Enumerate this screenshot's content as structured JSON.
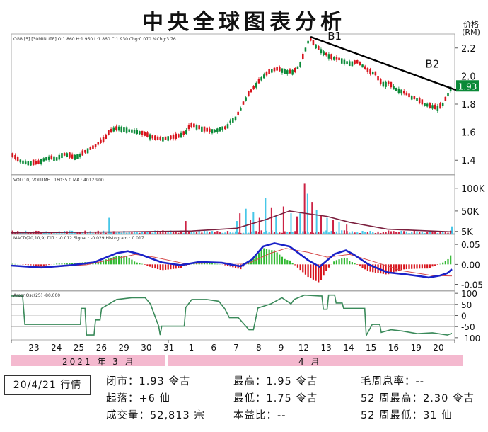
{
  "header": {
    "title": "中央全球图表分析",
    "price_unit_line1": "价格",
    "price_unit_line2": "(RM)"
  },
  "panels": {
    "price_header": "CGB [5] [30MINUTE] O:1.860 H:1.950 L:1.860 C:1.930 Chg:0.070 %Chg:3.76",
    "volume_header": "VOL(10)  VOLUME : 16035.0   MA : 4012.900",
    "macd_header": "MACD(20,10,9)   Diff : -0.012   Signal : -0.029   Histogram : 0.017",
    "aroon_header": "AroonOsc(25) -80.000"
  },
  "trendline_labels": [
    "B1",
    "B2"
  ],
  "last_price_label": "1.93",
  "month_labels": {
    "march": "2021 年 3 月",
    "april": "4 月"
  },
  "colors": {
    "up": "#0b8a38",
    "down": "#d8141c",
    "volume_up": "#47c7e8",
    "volume_down": "#cc2244",
    "volume_ma": "#7b1f3e",
    "macd": "#1a22c8",
    "signal": "#d64a4a",
    "aroon": "#3a8a5a",
    "band": "#f4b9cf",
    "last_price_bg": "#0b8a38"
  },
  "chart_data": [
    {
      "type": "candlestick",
      "title": "CGB [5] [30MINUTE] O:1.860 H:1.950 L:1.860 C:1.930 Chg:0.070 %Chg:3.76",
      "ylabel": "价格 (RM)",
      "ylim": [
        1.3,
        2.3
      ],
      "yticks": [
        1.4,
        1.6,
        1.8,
        2.0,
        2.2
      ],
      "x_tick_labels": [
        "23",
        "24",
        "25",
        "26",
        "29",
        "30",
        "31",
        "1",
        "6",
        "7",
        "8",
        "9",
        "12",
        "13",
        "14",
        "15",
        "16",
        "19",
        "20"
      ],
      "close_path": [
        [
          0,
          1.44
        ],
        [
          10,
          1.4
        ],
        [
          20,
          1.38
        ],
        [
          35,
          1.38
        ],
        [
          45,
          1.41
        ],
        [
          52,
          1.42
        ],
        [
          60,
          1.41
        ],
        [
          68,
          1.44
        ],
        [
          75,
          1.44
        ],
        [
          82,
          1.42
        ],
        [
          90,
          1.43
        ],
        [
          98,
          1.46
        ],
        [
          105,
          1.48
        ],
        [
          112,
          1.5
        ],
        [
          118,
          1.53
        ],
        [
          124,
          1.55
        ],
        [
          130,
          1.6
        ],
        [
          136,
          1.62
        ],
        [
          142,
          1.63
        ],
        [
          150,
          1.62
        ],
        [
          160,
          1.61
        ],
        [
          170,
          1.6
        ],
        [
          180,
          1.58
        ],
        [
          190,
          1.56
        ],
        [
          200,
          1.55
        ],
        [
          210,
          1.56
        ],
        [
          222,
          1.57
        ],
        [
          232,
          1.6
        ],
        [
          238,
          1.65
        ],
        [
          246,
          1.64
        ],
        [
          256,
          1.62
        ],
        [
          264,
          1.61
        ],
        [
          272,
          1.61
        ],
        [
          280,
          1.63
        ],
        [
          286,
          1.63
        ],
        [
          292,
          1.68
        ],
        [
          298,
          1.7
        ],
        [
          304,
          1.75
        ],
        [
          308,
          1.8
        ],
        [
          314,
          1.86
        ],
        [
          320,
          1.9
        ],
        [
          326,
          1.94
        ],
        [
          332,
          1.98
        ],
        [
          338,
          2.01
        ],
        [
          346,
          2.04
        ],
        [
          354,
          2.05
        ],
        [
          362,
          2.04
        ],
        [
          368,
          2.03
        ],
        [
          376,
          2.03
        ],
        [
          384,
          2.08
        ],
        [
          390,
          2.17
        ],
        [
          394,
          2.24
        ],
        [
          398,
          2.26
        ],
        [
          404,
          2.22
        ],
        [
          412,
          2.18
        ],
        [
          420,
          2.15
        ],
        [
          428,
          2.13
        ],
        [
          436,
          2.12
        ],
        [
          444,
          2.1
        ],
        [
          452,
          2.09
        ],
        [
          460,
          2.1
        ],
        [
          468,
          2.07
        ],
        [
          476,
          2.03
        ],
        [
          484,
          2.02
        ],
        [
          490,
          1.96
        ],
        [
          496,
          1.94
        ],
        [
          502,
          1.95
        ],
        [
          508,
          1.92
        ],
        [
          514,
          1.9
        ],
        [
          520,
          1.89
        ],
        [
          526,
          1.87
        ],
        [
          532,
          1.85
        ],
        [
          538,
          1.84
        ],
        [
          544,
          1.82
        ],
        [
          550,
          1.8
        ],
        [
          556,
          1.79
        ],
        [
          562,
          1.78
        ],
        [
          568,
          1.77
        ],
        [
          574,
          1.8
        ],
        [
          580,
          1.86
        ],
        [
          586,
          1.93
        ]
      ],
      "candle_count": 170,
      "trendline": {
        "from": [
          398,
          2.28
        ],
        "to": [
          586,
          1.9
        ]
      },
      "annotations": [
        "B1",
        "B2"
      ],
      "last_value": 1.93
    },
    {
      "type": "bar",
      "title": "VOL(10) VOLUME : 16035.0 MA : 4012.900",
      "ylim": [
        0,
        120000
      ],
      "yticks": [
        5000,
        50000,
        100000
      ],
      "ytick_labels": [
        "5K",
        "50K",
        "100K"
      ],
      "spikes": [
        [
          130,
          35000
        ],
        [
          232,
          28000
        ],
        [
          300,
          28000
        ],
        [
          304,
          45000
        ],
        [
          312,
          55000
        ],
        [
          318,
          30000
        ],
        [
          322,
          48000
        ],
        [
          330,
          35000
        ],
        [
          338,
          78000
        ],
        [
          346,
          58000
        ],
        [
          352,
          40000
        ],
        [
          362,
          60000
        ],
        [
          372,
          45000
        ],
        [
          380,
          38000
        ],
        [
          384,
          45000
        ],
        [
          390,
          110000
        ],
        [
          394,
          88000
        ],
        [
          400,
          70000
        ],
        [
          406,
          52000
        ],
        [
          412,
          40000
        ],
        [
          420,
          35000
        ],
        [
          428,
          30000
        ],
        [
          436,
          25000
        ],
        [
          446,
          20000
        ],
        [
          586,
          16035
        ]
      ],
      "ma_path": [
        [
          0,
          2000
        ],
        [
          150,
          4000
        ],
        [
          240,
          6000
        ],
        [
          300,
          12000
        ],
        [
          340,
          32000
        ],
        [
          370,
          50000
        ],
        [
          390,
          45000
        ],
        [
          420,
          38000
        ],
        [
          450,
          25000
        ],
        [
          500,
          10000
        ],
        [
          586,
          4012.9
        ]
      ],
      "last_volume": 16035.0,
      "last_ma": 4012.9
    },
    {
      "type": "line",
      "title": "MACD(20,10,9) Diff : -0.012 Signal : -0.029 Histogram : 0.017",
      "ylim": [
        -0.065,
        0.075
      ],
      "yticks": [
        0.05,
        0.0,
        -0.05
      ],
      "ytick_labels": [
        "0.05",
        "0.00",
        "-0.05"
      ],
      "series": [
        {
          "name": "Diff",
          "values": [
            [
              0,
              -0.003
            ],
            [
              40,
              -0.008
            ],
            [
              80,
              -0.002
            ],
            [
              110,
              0.005
            ],
            [
              140,
              0.028
            ],
            [
              155,
              0.033
            ],
            [
              170,
              0.026
            ],
            [
              200,
              0.005
            ],
            [
              225,
              -0.002
            ],
            [
              250,
              0.006
            ],
            [
              280,
              0.004
            ],
            [
              305,
              -0.005
            ],
            [
              320,
              0.012
            ],
            [
              335,
              0.045
            ],
            [
              350,
              0.053
            ],
            [
              370,
              0.045
            ],
            [
              395,
              0.01
            ],
            [
              410,
              -0.006
            ],
            [
              430,
              0.026
            ],
            [
              445,
              0.035
            ],
            [
              455,
              0.025
            ],
            [
              475,
              0.0
            ],
            [
              500,
              -0.02
            ],
            [
              525,
              -0.025
            ],
            [
              545,
              -0.03
            ],
            [
              555,
              -0.033
            ],
            [
              570,
              -0.028
            ],
            [
              580,
              -0.022
            ],
            [
              586,
              -0.012
            ]
          ]
        },
        {
          "name": "Signal",
          "values": [
            [
              0,
              -0.004
            ],
            [
              60,
              -0.006
            ],
            [
              100,
              -0.001
            ],
            [
              140,
              0.015
            ],
            [
              165,
              0.025
            ],
            [
              190,
              0.018
            ],
            [
              230,
              0.002
            ],
            [
              280,
              0.004
            ],
            [
              315,
              0.002
            ],
            [
              345,
              0.028
            ],
            [
              365,
              0.04
            ],
            [
              395,
              0.03
            ],
            [
              420,
              0.018
            ],
            [
              450,
              0.025
            ],
            [
              480,
              0.008
            ],
            [
              520,
              -0.016
            ],
            [
              560,
              -0.028
            ],
            [
              586,
              -0.029
            ]
          ]
        },
        {
          "name": "Histogram",
          "values": [
            [
              0,
              -0.001
            ],
            [
              586,
              0.017
            ]
          ]
        }
      ]
    },
    {
      "type": "line",
      "title": "AroonOsc(25) -80.000",
      "ylim": [
        -110,
        110
      ],
      "yticks": [
        100,
        50,
        0,
        -50,
        -100
      ],
      "series": [
        {
          "name": "AroonOsc",
          "values": [
            [
              0,
              88
            ],
            [
              15,
              88
            ],
            [
              18,
              -40
            ],
            [
              60,
              -40
            ],
            [
              92,
              -40
            ],
            [
              93,
              32
            ],
            [
              98,
              32
            ],
            [
              100,
              -88
            ],
            [
              110,
              -88
            ],
            [
              112,
              -20
            ],
            [
              118,
              -20
            ],
            [
              120,
              32
            ],
            [
              140,
              72
            ],
            [
              160,
              80
            ],
            [
              178,
              80
            ],
            [
              185,
              52
            ],
            [
              196,
              -48
            ],
            [
              198,
              -88
            ],
            [
              200,
              -48
            ],
            [
              230,
              -48
            ],
            [
              232,
              36
            ],
            [
              240,
              72
            ],
            [
              260,
              72
            ],
            [
              276,
              64
            ],
            [
              284,
              30
            ],
            [
              290,
              -10
            ],
            [
              302,
              -10
            ],
            [
              316,
              -64
            ],
            [
              322,
              -64
            ],
            [
              328,
              34
            ],
            [
              345,
              52
            ],
            [
              360,
              80
            ],
            [
              372,
              52
            ],
            [
              376,
              72
            ],
            [
              390,
              92
            ],
            [
              410,
              88
            ],
            [
              413,
              88
            ],
            [
              415,
              28
            ],
            [
              420,
              28
            ],
            [
              422,
              92
            ],
            [
              430,
              92
            ],
            [
              432,
              56
            ],
            [
              440,
              56
            ],
            [
              442,
              32
            ],
            [
              470,
              32
            ],
            [
              472,
              -90
            ],
            [
              480,
              -40
            ],
            [
              490,
              -40
            ],
            [
              492,
              -76
            ],
            [
              505,
              -64
            ],
            [
              520,
              -70
            ],
            [
              540,
              -82
            ],
            [
              560,
              -78
            ],
            [
              580,
              -88
            ],
            [
              586,
              -80
            ]
          ]
        }
      ],
      "last_value": -80.0
    }
  ],
  "summary": {
    "date_label": "20/4/21 行情",
    "stats": [
      {
        "label": "闭市：",
        "value": "1.93 令吉"
      },
      {
        "label": "起落：",
        "value": "+6 仙"
      },
      {
        "label": "成交量：",
        "value": "52,813 宗"
      },
      {
        "label": "最高：",
        "value": "1.95 令吉"
      },
      {
        "label": "最低：",
        "value": "1.75 令吉"
      },
      {
        "label": "本益比：",
        "value": "--"
      },
      {
        "label": "毛周息率：",
        "value": "--"
      },
      {
        "label": "52 周最高：",
        "value": "2.30 令吉"
      },
      {
        "label": "52 周最低：",
        "value": "31 仙"
      }
    ]
  }
}
